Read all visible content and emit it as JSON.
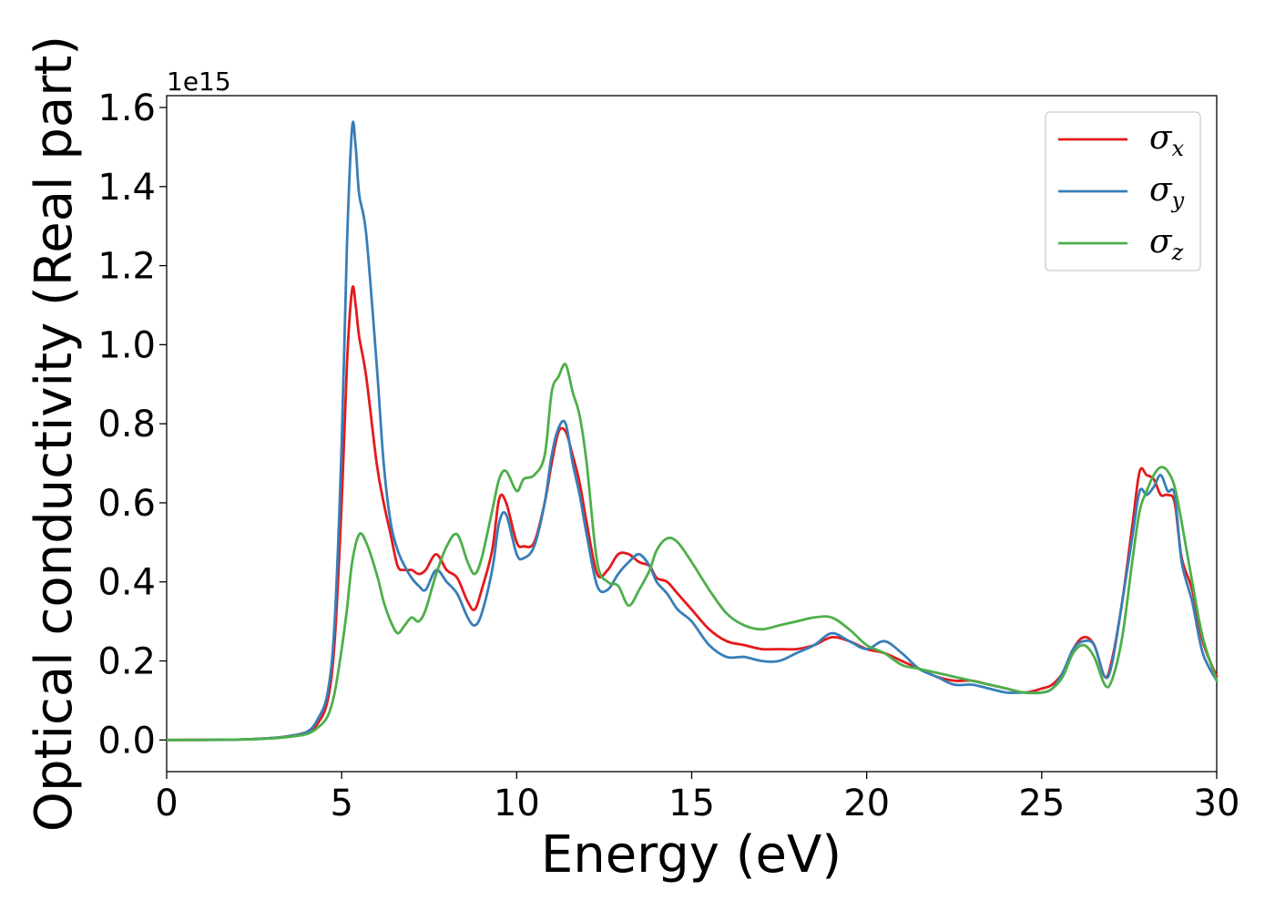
{
  "chart_data": {
    "type": "line",
    "title": "",
    "xlabel": "Energy (eV)",
    "ylabel": "Optical conductivity (Real part)",
    "y_offset_label": "1e15",
    "xlim": [
      0,
      30
    ],
    "ylim": [
      -0.08,
      1.63
    ],
    "xticks": [
      0,
      5,
      10,
      15,
      20,
      25,
      30
    ],
    "xtick_labels": [
      "0",
      "5",
      "10",
      "15",
      "20",
      "25",
      "30"
    ],
    "yticks": [
      0.0,
      0.2,
      0.4,
      0.6,
      0.8,
      1.0,
      1.2,
      1.4,
      1.6
    ],
    "ytick_labels": [
      "0.0",
      "0.2",
      "0.4",
      "0.6",
      "0.8",
      "1.0",
      "1.2",
      "1.4",
      "1.6"
    ],
    "grid": false,
    "legend_position": "top-right",
    "series": [
      {
        "name": "σ",
        "subscript": "x",
        "color": "#e41a1c",
        "x": [
          0,
          2,
          3,
          3.5,
          4,
          4.3,
          4.6,
          4.8,
          5.0,
          5.15,
          5.3,
          5.4,
          5.5,
          5.7,
          6.0,
          6.2,
          6.4,
          6.6,
          6.8,
          7.0,
          7.2,
          7.4,
          7.7,
          8.0,
          8.3,
          8.6,
          8.8,
          9.0,
          9.3,
          9.5,
          9.7,
          10.0,
          10.2,
          10.5,
          10.8,
          11.0,
          11.2,
          11.4,
          11.6,
          11.8,
          12.0,
          12.3,
          12.6,
          12.9,
          13.2,
          13.5,
          13.8,
          14.0,
          14.3,
          14.6,
          15.0,
          15.5,
          16.0,
          16.5,
          17.0,
          17.5,
          18.0,
          18.5,
          19.0,
          19.5,
          20.0,
          20.5,
          21.0,
          21.5,
          22.0,
          22.5,
          23.0,
          23.5,
          24.0,
          24.5,
          25.0,
          25.3,
          25.6,
          25.9,
          26.2,
          26.5,
          26.8,
          27.0,
          27.3,
          27.6,
          27.8,
          28.0,
          28.2,
          28.4,
          28.6,
          28.8,
          29.0,
          29.3,
          29.6,
          30.0
        ],
        "values": [
          0.0,
          0.001,
          0.005,
          0.01,
          0.02,
          0.04,
          0.1,
          0.25,
          0.6,
          0.95,
          1.14,
          1.1,
          1.02,
          0.92,
          0.7,
          0.6,
          0.52,
          0.44,
          0.43,
          0.43,
          0.42,
          0.43,
          0.47,
          0.43,
          0.41,
          0.35,
          0.33,
          0.38,
          0.48,
          0.61,
          0.6,
          0.5,
          0.49,
          0.5,
          0.6,
          0.7,
          0.78,
          0.78,
          0.72,
          0.65,
          0.55,
          0.42,
          0.43,
          0.47,
          0.47,
          0.45,
          0.44,
          0.41,
          0.4,
          0.37,
          0.33,
          0.28,
          0.25,
          0.24,
          0.23,
          0.23,
          0.23,
          0.24,
          0.26,
          0.25,
          0.23,
          0.22,
          0.2,
          0.18,
          0.16,
          0.15,
          0.15,
          0.14,
          0.13,
          0.12,
          0.13,
          0.14,
          0.17,
          0.23,
          0.26,
          0.24,
          0.16,
          0.2,
          0.35,
          0.55,
          0.68,
          0.67,
          0.66,
          0.62,
          0.62,
          0.6,
          0.46,
          0.38,
          0.25,
          0.16
        ]
      },
      {
        "name": "σ",
        "subscript": "y",
        "color": "#377eb8",
        "x": [
          0,
          2,
          3,
          3.5,
          4,
          4.3,
          4.6,
          4.8,
          5.0,
          5.15,
          5.3,
          5.4,
          5.5,
          5.7,
          6.0,
          6.2,
          6.4,
          6.6,
          6.8,
          7.0,
          7.2,
          7.4,
          7.7,
          8.0,
          8.3,
          8.6,
          8.8,
          9.0,
          9.3,
          9.5,
          9.7,
          10.0,
          10.2,
          10.5,
          10.8,
          11.0,
          11.2,
          11.4,
          11.6,
          11.8,
          12.0,
          12.3,
          12.6,
          12.9,
          13.2,
          13.5,
          13.8,
          14.0,
          14.3,
          14.6,
          15.0,
          15.5,
          16.0,
          16.5,
          17.0,
          17.5,
          18.0,
          18.5,
          19.0,
          19.5,
          20.0,
          20.5,
          21.0,
          21.5,
          22.0,
          22.5,
          23.0,
          23.5,
          24.0,
          24.5,
          25.0,
          25.3,
          25.6,
          25.9,
          26.2,
          26.5,
          26.8,
          27.0,
          27.3,
          27.6,
          27.8,
          28.0,
          28.2,
          28.4,
          28.6,
          28.8,
          29.0,
          29.3,
          29.6,
          30.0
        ],
        "values": [
          0.0,
          0.001,
          0.005,
          0.01,
          0.02,
          0.05,
          0.12,
          0.3,
          0.75,
          1.25,
          1.55,
          1.5,
          1.38,
          1.28,
          0.95,
          0.7,
          0.55,
          0.48,
          0.44,
          0.41,
          0.39,
          0.38,
          0.43,
          0.4,
          0.37,
          0.31,
          0.29,
          0.32,
          0.43,
          0.55,
          0.57,
          0.47,
          0.46,
          0.49,
          0.6,
          0.72,
          0.79,
          0.8,
          0.7,
          0.62,
          0.52,
          0.39,
          0.38,
          0.42,
          0.45,
          0.47,
          0.44,
          0.4,
          0.37,
          0.33,
          0.3,
          0.24,
          0.21,
          0.21,
          0.2,
          0.2,
          0.22,
          0.24,
          0.27,
          0.25,
          0.23,
          0.25,
          0.22,
          0.18,
          0.16,
          0.14,
          0.14,
          0.13,
          0.12,
          0.12,
          0.12,
          0.13,
          0.17,
          0.23,
          0.25,
          0.24,
          0.16,
          0.19,
          0.35,
          0.52,
          0.63,
          0.62,
          0.64,
          0.67,
          0.63,
          0.62,
          0.45,
          0.35,
          0.22,
          0.15
        ]
      },
      {
        "name": "σ",
        "subscript": "z",
        "color": "#4daf4a",
        "x": [
          0,
          2,
          3,
          3.5,
          4,
          4.3,
          4.6,
          4.8,
          5.0,
          5.15,
          5.3,
          5.5,
          5.7,
          6.0,
          6.2,
          6.4,
          6.6,
          6.8,
          7.0,
          7.2,
          7.4,
          7.7,
          8.0,
          8.3,
          8.6,
          8.8,
          9.0,
          9.3,
          9.5,
          9.7,
          10.0,
          10.2,
          10.5,
          10.8,
          11.0,
          11.2,
          11.4,
          11.6,
          11.8,
          12.0,
          12.3,
          12.6,
          12.9,
          13.2,
          13.5,
          13.8,
          14.0,
          14.3,
          14.6,
          15.0,
          15.5,
          16.0,
          16.5,
          17.0,
          17.5,
          18.0,
          18.5,
          19.0,
          19.5,
          20.0,
          20.5,
          21.0,
          21.5,
          22.0,
          22.5,
          23.0,
          23.5,
          24.0,
          24.5,
          25.0,
          25.3,
          25.6,
          25.9,
          26.2,
          26.5,
          26.8,
          27.0,
          27.3,
          27.6,
          27.8,
          28.0,
          28.2,
          28.4,
          28.6,
          28.8,
          29.0,
          29.3,
          29.6,
          30.0
        ],
        "values": [
          0.0,
          0.001,
          0.004,
          0.008,
          0.015,
          0.03,
          0.06,
          0.12,
          0.23,
          0.33,
          0.45,
          0.52,
          0.5,
          0.42,
          0.35,
          0.3,
          0.27,
          0.29,
          0.31,
          0.3,
          0.33,
          0.42,
          0.49,
          0.52,
          0.45,
          0.42,
          0.46,
          0.58,
          0.66,
          0.68,
          0.63,
          0.66,
          0.67,
          0.72,
          0.88,
          0.92,
          0.95,
          0.88,
          0.82,
          0.7,
          0.45,
          0.4,
          0.39,
          0.34,
          0.38,
          0.43,
          0.48,
          0.51,
          0.5,
          0.45,
          0.38,
          0.32,
          0.29,
          0.28,
          0.29,
          0.3,
          0.31,
          0.31,
          0.28,
          0.24,
          0.22,
          0.19,
          0.18,
          0.17,
          0.16,
          0.15,
          0.14,
          0.13,
          0.12,
          0.12,
          0.13,
          0.16,
          0.22,
          0.24,
          0.21,
          0.14,
          0.15,
          0.26,
          0.46,
          0.58,
          0.63,
          0.67,
          0.69,
          0.68,
          0.64,
          0.55,
          0.4,
          0.26,
          0.15
        ]
      }
    ]
  }
}
